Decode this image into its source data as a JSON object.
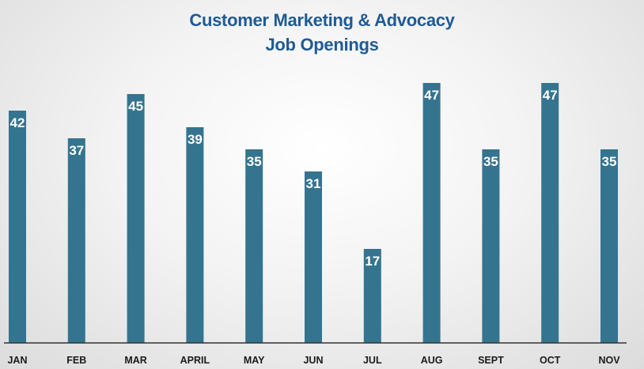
{
  "chart_data": {
    "type": "bar",
    "title": "Customer Marketing & Advocacy",
    "subtitle": "Job Openings",
    "categories": [
      "JAN",
      "FEB",
      "MAR",
      "APRIL",
      "MAY",
      "JUN",
      "JUL",
      "AUG",
      "SEPT",
      "OCT",
      "NOV"
    ],
    "values": [
      42,
      37,
      45,
      39,
      35,
      31,
      17,
      47,
      35,
      47,
      35
    ],
    "xlabel": "",
    "ylabel": "",
    "ylim": [
      0,
      62
    ],
    "grid": false,
    "legend": "none",
    "data_labels": true
  },
  "colors": {
    "bar": "#35748f",
    "title": "#1f5b94",
    "bar_label": "#ffffff",
    "tick_label": "#1a1a1a"
  }
}
